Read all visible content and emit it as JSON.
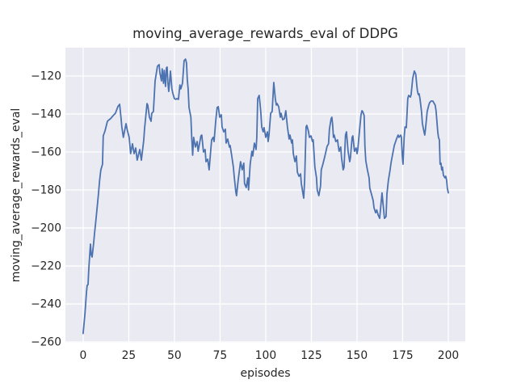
{
  "figure": {
    "background": "#ffffff"
  },
  "chart_data": {
    "type": "line",
    "title": "moving_average_rewards_eval of DDPG",
    "xlabel": "episodes",
    "ylabel": "moving_average_rewards_eval",
    "x_ticks": [
      0,
      25,
      50,
      75,
      100,
      125,
      150,
      175,
      200
    ],
    "x_tick_labels": [
      "0",
      "25",
      "50",
      "75",
      "100",
      "125",
      "150",
      "175",
      "200"
    ],
    "y_ticks": [
      -120,
      -140,
      -160,
      -180,
      -200,
      -220,
      -240,
      -260
    ],
    "y_tick_labels": [
      "−120",
      "−140",
      "−160",
      "−180",
      "−200",
      "−220",
      "−240",
      "−260"
    ],
    "xlim": [
      -9.7,
      209.3
    ],
    "ylim": [
      -260.4,
      -105.1
    ],
    "grid": true,
    "legend": null,
    "style": {
      "plot_bg": "#eaeaf2",
      "grid_color": "#ffffff",
      "line_color": "#4c72b0",
      "text_color": "#262626",
      "line_width": 1.8
    },
    "series": [
      {
        "name": "moving_average_rewards_eval",
        "points": [
          [
            0,
            -255.5
          ],
          [
            1,
            -245
          ],
          [
            1.8,
            -234
          ],
          [
            2.2,
            -230.2
          ],
          [
            2.7,
            -229.8
          ],
          [
            3.1,
            -221.7
          ],
          [
            3.6,
            -214
          ],
          [
            4,
            -208.5
          ],
          [
            4.4,
            -214
          ],
          [
            4.9,
            -215.3
          ],
          [
            5.8,
            -207.7
          ],
          [
            6.2,
            -203.4
          ],
          [
            7,
            -196
          ],
          [
            8,
            -186
          ],
          [
            8.4,
            -182
          ],
          [
            9,
            -175
          ],
          [
            9.7,
            -169.5
          ],
          [
            10.6,
            -166.4
          ],
          [
            11,
            -151.5
          ],
          [
            11.5,
            -150.2
          ],
          [
            12,
            -148.9
          ],
          [
            13.3,
            -143.8
          ],
          [
            14,
            -143.2
          ],
          [
            15,
            -142.5
          ],
          [
            16,
            -141.3
          ],
          [
            17,
            -140.3
          ],
          [
            17.7,
            -139.6
          ],
          [
            19,
            -136.1
          ],
          [
            20,
            -134.9
          ],
          [
            20.8,
            -142.5
          ],
          [
            21.2,
            -146.8
          ],
          [
            22,
            -152.3
          ],
          [
            23.5,
            -145.1
          ],
          [
            24.3,
            -148.9
          ],
          [
            25.2,
            -152.3
          ],
          [
            26,
            -160.9
          ],
          [
            27,
            -155.7
          ],
          [
            27.9,
            -160.9
          ],
          [
            28.8,
            -157.9
          ],
          [
            29.6,
            -164.3
          ],
          [
            31,
            -158.7
          ],
          [
            31.9,
            -164.3
          ],
          [
            33.2,
            -153.6
          ],
          [
            33.6,
            -148
          ],
          [
            35,
            -134.5
          ],
          [
            35.4,
            -135.3
          ],
          [
            36.3,
            -141.7
          ],
          [
            37.2,
            -143.8
          ],
          [
            37.6,
            -139.6
          ],
          [
            38.5,
            -138.7
          ],
          [
            39.4,
            -122.6
          ],
          [
            40.7,
            -114.9
          ],
          [
            41.6,
            -114
          ],
          [
            42,
            -118.3
          ],
          [
            42.9,
            -122.6
          ],
          [
            43.3,
            -116.2
          ],
          [
            44,
            -123.8
          ],
          [
            44.4,
            -117
          ],
          [
            45.1,
            -125.5
          ],
          [
            45.6,
            -115.7
          ],
          [
            46,
            -115.3
          ],
          [
            46.4,
            -123.4
          ],
          [
            46.9,
            -128.1
          ],
          [
            47.8,
            -117.4
          ],
          [
            48.6,
            -126.8
          ],
          [
            49.1,
            -129
          ],
          [
            50,
            -131.9
          ],
          [
            50.8,
            -132.3
          ],
          [
            51.3,
            -131.9
          ],
          [
            52.2,
            -132.3
          ],
          [
            53,
            -124.7
          ],
          [
            53.5,
            -126.8
          ],
          [
            54.4,
            -123.8
          ],
          [
            55.3,
            -111.9
          ],
          [
            56.1,
            -111.1
          ],
          [
            56.6,
            -113.2
          ],
          [
            57,
            -121.7
          ],
          [
            57.5,
            -126.8
          ],
          [
            58,
            -136.6
          ],
          [
            59,
            -141.7
          ],
          [
            59.5,
            -153
          ],
          [
            60,
            -161.7
          ],
          [
            60.5,
            -152.3
          ],
          [
            61.5,
            -157.4
          ],
          [
            62.4,
            -154.5
          ],
          [
            63,
            -159.6
          ],
          [
            64.5,
            -151.5
          ],
          [
            65,
            -151.1
          ],
          [
            65.9,
            -160
          ],
          [
            66.8,
            -158.7
          ],
          [
            67.3,
            -165.1
          ],
          [
            68.2,
            -163.8
          ],
          [
            69,
            -169.4
          ],
          [
            70,
            -158
          ],
          [
            70.4,
            -153.6
          ],
          [
            71.2,
            -152.3
          ],
          [
            71.7,
            -154.5
          ],
          [
            72.6,
            -143.8
          ],
          [
            73.4,
            -136.6
          ],
          [
            74,
            -136.1
          ],
          [
            74.8,
            -141.7
          ],
          [
            75.7,
            -140.4
          ],
          [
            76.1,
            -146.8
          ],
          [
            77,
            -149.4
          ],
          [
            77.9,
            -148
          ],
          [
            78.3,
            -155.3
          ],
          [
            79.2,
            -153.2
          ],
          [
            80.1,
            -157.4
          ],
          [
            80.5,
            -156.6
          ],
          [
            81.4,
            -162.1
          ],
          [
            82.3,
            -168
          ],
          [
            82.7,
            -172.3
          ],
          [
            83.6,
            -180.9
          ],
          [
            84,
            -183
          ],
          [
            84.9,
            -174.9
          ],
          [
            85.8,
            -168
          ],
          [
            86.2,
            -165.1
          ],
          [
            87.1,
            -169.4
          ],
          [
            88,
            -165.9
          ],
          [
            88.4,
            -176.6
          ],
          [
            89.3,
            -178.7
          ],
          [
            90.2,
            -173.6
          ],
          [
            90.6,
            -180
          ],
          [
            91.5,
            -166.4
          ],
          [
            92.4,
            -159.6
          ],
          [
            92.9,
            -162.1
          ],
          [
            93.8,
            -155.3
          ],
          [
            94.7,
            -158.7
          ],
          [
            95.1,
            -152.3
          ],
          [
            95.6,
            -131.9
          ],
          [
            96.4,
            -130.2
          ],
          [
            96.9,
            -134.5
          ],
          [
            97.3,
            -138.7
          ],
          [
            97.8,
            -146.8
          ],
          [
            98.6,
            -149.4
          ],
          [
            99.1,
            -147.2
          ],
          [
            100,
            -152.3
          ],
          [
            100.9,
            -149.4
          ],
          [
            101.3,
            -154.5
          ],
          [
            101.8,
            -151.1
          ],
          [
            102.7,
            -139.6
          ],
          [
            103.5,
            -138.7
          ],
          [
            104.4,
            -123.4
          ],
          [
            105.3,
            -132.3
          ],
          [
            105.8,
            -135.3
          ],
          [
            106.2,
            -134.5
          ],
          [
            107.1,
            -136.1
          ],
          [
            108,
            -141.7
          ],
          [
            108.4,
            -139.6
          ],
          [
            109.3,
            -143
          ],
          [
            110.2,
            -142.5
          ],
          [
            111,
            -138.3
          ],
          [
            111.9,
            -146.8
          ],
          [
            112.8,
            -153.2
          ],
          [
            113.3,
            -151.1
          ],
          [
            114.2,
            -155.3
          ],
          [
            114.6,
            -153.6
          ],
          [
            115.1,
            -160.9
          ],
          [
            116,
            -165.1
          ],
          [
            116.8,
            -162.1
          ],
          [
            117.3,
            -170.6
          ],
          [
            118.2,
            -172.8
          ],
          [
            119.1,
            -171.5
          ],
          [
            119.5,
            -176.6
          ],
          [
            120.4,
            -182.1
          ],
          [
            120.8,
            -184.3
          ],
          [
            121.3,
            -175
          ],
          [
            122.1,
            -146.8
          ],
          [
            122.5,
            -146
          ],
          [
            123.4,
            -149
          ],
          [
            123.9,
            -152.3
          ],
          [
            124.8,
            -151.5
          ],
          [
            125.6,
            -154.5
          ],
          [
            126,
            -153.6
          ],
          [
            126.9,
            -168
          ],
          [
            127.8,
            -173.6
          ],
          [
            128.2,
            -180
          ],
          [
            129.1,
            -183
          ],
          [
            130,
            -177.9
          ],
          [
            130.4,
            -169.4
          ],
          [
            131.3,
            -166.4
          ],
          [
            132.2,
            -163
          ],
          [
            132.7,
            -160.9
          ],
          [
            133.6,
            -157
          ],
          [
            134.4,
            -155.7
          ],
          [
            134.9,
            -148
          ],
          [
            135.8,
            -142.5
          ],
          [
            136.2,
            -141.7
          ],
          [
            136.6,
            -145.1
          ],
          [
            137.1,
            -152.3
          ],
          [
            137.5,
            -151.1
          ],
          [
            138.4,
            -154.5
          ],
          [
            139.3,
            -153.6
          ],
          [
            139.7,
            -156.6
          ],
          [
            140.2,
            -159.6
          ],
          [
            141.1,
            -157.4
          ],
          [
            141.5,
            -163
          ],
          [
            142.4,
            -169.4
          ],
          [
            142.9,
            -168
          ],
          [
            143.7,
            -151.1
          ],
          [
            144.2,
            -149.4
          ],
          [
            145.1,
            -159.6
          ],
          [
            146,
            -165.1
          ],
          [
            146.4,
            -163
          ],
          [
            147.3,
            -152.3
          ],
          [
            147.7,
            -151.5
          ],
          [
            148.6,
            -159.6
          ],
          [
            149.5,
            -157.9
          ],
          [
            150,
            -160.9
          ],
          [
            150.4,
            -158.7
          ],
          [
            151.3,
            -149.4
          ],
          [
            152.2,
            -140.4
          ],
          [
            152.7,
            -138.3
          ],
          [
            153.1,
            -138.7
          ],
          [
            153.9,
            -140.8
          ],
          [
            154.3,
            -156.6
          ],
          [
            154.8,
            -164.5
          ],
          [
            155.7,
            -169.4
          ],
          [
            156.6,
            -173.6
          ],
          [
            157,
            -179.1
          ],
          [
            157.9,
            -182.1
          ],
          [
            158.8,
            -185.5
          ],
          [
            159.3,
            -189.4
          ],
          [
            160.2,
            -192
          ],
          [
            160.8,
            -190.5
          ],
          [
            161.5,
            -193
          ],
          [
            162.4,
            -194.9
          ],
          [
            163.7,
            -181.5
          ],
          [
            165,
            -194.9
          ],
          [
            165.9,
            -194
          ],
          [
            166.4,
            -182.1
          ],
          [
            167.2,
            -174.9
          ],
          [
            168.1,
            -169.4
          ],
          [
            168.6,
            -165.9
          ],
          [
            169.4,
            -161.7
          ],
          [
            170.4,
            -156.6
          ],
          [
            171.6,
            -153.2
          ],
          [
            172.5,
            -151.1
          ],
          [
            173,
            -152.3
          ],
          [
            173.9,
            -151.1
          ],
          [
            174.3,
            -152.3
          ],
          [
            174.8,
            -162.1
          ],
          [
            175.2,
            -166.4
          ],
          [
            175.8,
            -152.3
          ],
          [
            176.3,
            -146.8
          ],
          [
            177,
            -147.2
          ],
          [
            177.8,
            -131.9
          ],
          [
            178.3,
            -130.2
          ],
          [
            179.2,
            -131.1
          ],
          [
            179.6,
            -129.8
          ],
          [
            180.5,
            -121.3
          ],
          [
            181.4,
            -117.4
          ],
          [
            182.2,
            -119.1
          ],
          [
            182.7,
            -124.7
          ],
          [
            183.1,
            -128
          ],
          [
            183.6,
            -129.8
          ],
          [
            184,
            -129.4
          ],
          [
            184.5,
            -131.9
          ],
          [
            185.3,
            -138.7
          ],
          [
            185.8,
            -145.1
          ],
          [
            186.7,
            -149.4
          ],
          [
            187.1,
            -151.1
          ],
          [
            187.5,
            -148
          ],
          [
            188.4,
            -138.7
          ],
          [
            189.3,
            -135.3
          ],
          [
            189.8,
            -134
          ],
          [
            190.6,
            -133.2
          ],
          [
            191.5,
            -133.2
          ],
          [
            192,
            -134
          ],
          [
            192.8,
            -135.3
          ],
          [
            193.3,
            -138.3
          ],
          [
            194.2,
            -149.4
          ],
          [
            194.6,
            -152.3
          ],
          [
            195.1,
            -153.6
          ],
          [
            195.5,
            -166.4
          ],
          [
            196,
            -165.9
          ],
          [
            196.4,
            -169.4
          ],
          [
            196.8,
            -168
          ],
          [
            197.3,
            -172.3
          ],
          [
            198.2,
            -173.6
          ],
          [
            198.6,
            -172.8
          ],
          [
            199.1,
            -174.9
          ],
          [
            199.5,
            -179.1
          ],
          [
            200,
            -181.5
          ]
        ]
      }
    ]
  }
}
